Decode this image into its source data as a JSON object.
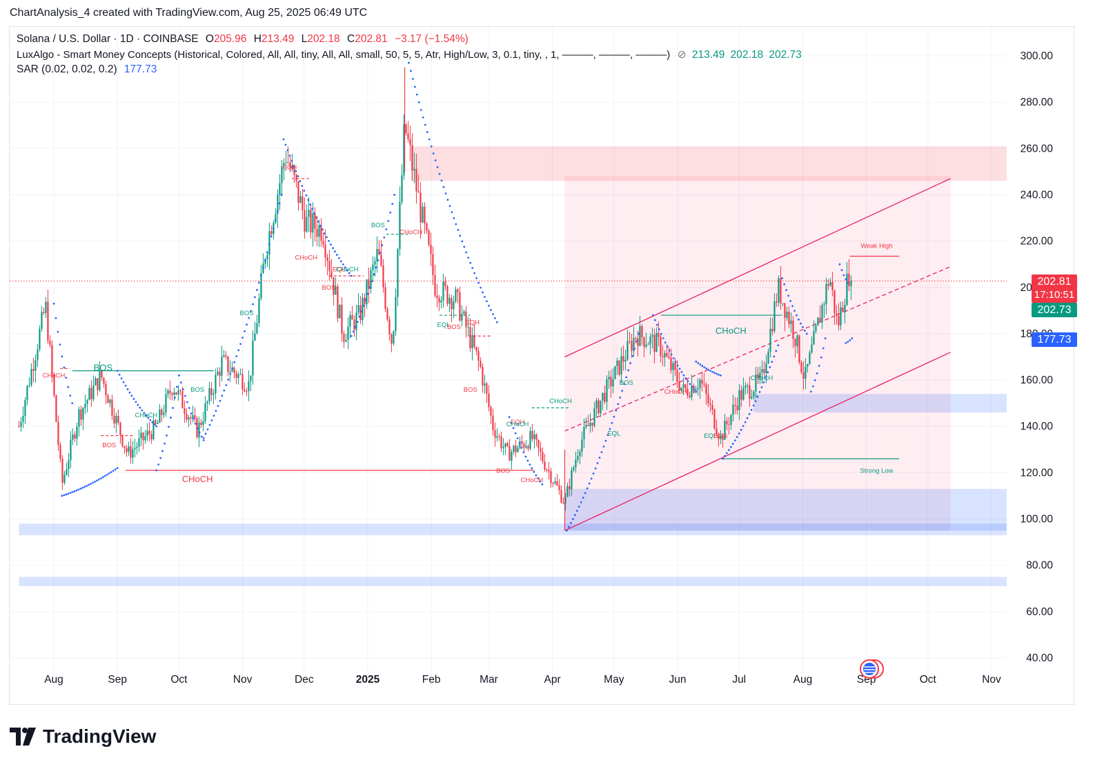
{
  "header": {
    "text": "ChartAnalysis_4 created with TradingView.com, Aug 25, 2025 06:49 UTC"
  },
  "legend": {
    "symbol": "Solana / U.S. Dollar · 1D · COINBASE",
    "o_label": "O",
    "o_val": "205.96",
    "h_label": "H",
    "h_val": "213.49",
    "l_label": "L",
    "l_val": "202.18",
    "c_label": "C",
    "c_val": "202.81",
    "change": "−3.17 (−1.54%)",
    "smc_label": "LuxAlgo - Smart Money Concepts (Historical, Colored, All, All, tiny, All, All, small, 50, 5, 5, Atr, High/Low, 3, 0.1, tiny, , 1, ———, ———, ———)",
    "smc_icon": "hidden-eye-icon",
    "smc_values": [
      "213.49",
      "202.18",
      "202.73"
    ],
    "sar_label": "SAR (0.02, 0.02, 0.2)",
    "sar_value": "177.73"
  },
  "price_tags": {
    "last_price": "202.81",
    "countdown": "17:10:51",
    "smc_value": "202.73",
    "sar_value": "177.73"
  },
  "colors": {
    "up": "#089981",
    "down": "#f23645",
    "sar": "#2962ff",
    "accent": "#e91e63"
  },
  "footer": {
    "logo": "TradingView",
    "logo_icon": "tradingview-logo-icon"
  },
  "chart_data": {
    "type": "candlestick",
    "title": "Solana / U.S. Dollar · 1D · COINBASE",
    "ylim": [
      40,
      300
    ],
    "y_ticks": [
      "300.00",
      "280.00",
      "260.00",
      "240.00",
      "220.00",
      "200.00",
      "180.00",
      "160.00",
      "140.00",
      "120.00",
      "100.00",
      "80.00",
      "60.00",
      "40.00"
    ],
    "x_ticks": [
      "Aug",
      "Sep",
      "Oct",
      "Nov",
      "Dec",
      "2025",
      "Feb",
      "Mar",
      "Apr",
      "May",
      "Jun",
      "Jul",
      "Aug",
      "Sep",
      "Oct",
      "Nov"
    ],
    "price_path": [
      [
        "2024-07-15",
        140
      ],
      [
        "2024-07-28",
        192
      ],
      [
        "2024-08-05",
        115
      ],
      [
        "2024-08-13",
        145
      ],
      [
        "2024-08-24",
        162
      ],
      [
        "2024-09-06",
        128
      ],
      [
        "2024-09-20",
        140
      ],
      [
        "2024-09-28",
        158
      ],
      [
        "2024-10-10",
        138
      ],
      [
        "2024-10-22",
        168
      ],
      [
        "2024-11-04",
        158
      ],
      [
        "2024-11-12",
        215
      ],
      [
        "2024-11-22",
        258
      ],
      [
        "2024-12-02",
        228
      ],
      [
        "2024-12-10",
        225
      ],
      [
        "2024-12-20",
        180
      ],
      [
        "2024-12-28",
        188
      ],
      [
        "2025-01-06",
        215
      ],
      [
        "2025-01-13",
        175
      ],
      [
        "2025-01-19",
        270
      ],
      [
        "2025-01-27",
        232
      ],
      [
        "2025-02-03",
        200
      ],
      [
        "2025-02-13",
        195
      ],
      [
        "2025-02-25",
        165
      ],
      [
        "2025-03-03",
        140
      ],
      [
        "2025-03-10",
        128
      ],
      [
        "2025-03-22",
        135
      ],
      [
        "2025-04-07",
        107
      ],
      [
        "2025-04-14",
        132
      ],
      [
        "2025-04-25",
        152
      ],
      [
        "2025-05-12",
        180
      ],
      [
        "2025-05-23",
        175
      ],
      [
        "2025-06-04",
        155
      ],
      [
        "2025-06-12",
        160
      ],
      [
        "2025-06-22",
        135
      ],
      [
        "2025-07-01",
        153
      ],
      [
        "2025-07-12",
        160
      ],
      [
        "2025-07-20",
        200
      ],
      [
        "2025-07-28",
        180
      ],
      [
        "2025-08-02",
        160
      ],
      [
        "2025-08-14",
        205
      ],
      [
        "2025-08-18",
        183
      ],
      [
        "2025-08-24",
        208
      ],
      [
        "2025-08-25",
        202.81
      ]
    ],
    "extremes": {
      "high": [
        "2025-01-19",
        295
      ],
      "low": [
        "2025-04-07",
        95
      ]
    },
    "sar_segments": [
      {
        "from": [
          "2024-08-01",
          193
        ],
        "to": [
          "2024-08-10",
          150
        ],
        "side": "above"
      },
      {
        "from": [
          "2024-08-05",
          110
        ],
        "to": [
          "2024-09-01",
          122
        ],
        "side": "below"
      },
      {
        "from": [
          "2024-09-01",
          164
        ],
        "to": [
          "2024-09-20",
          140
        ],
        "side": "above"
      },
      {
        "from": [
          "2024-09-20",
          121
        ],
        "to": [
          "2024-10-01",
          162
        ],
        "side": "below"
      },
      {
        "from": [
          "2024-10-01",
          162
        ],
        "to": [
          "2024-10-13",
          134
        ],
        "side": "above"
      },
      {
        "from": [
          "2024-10-13",
          135
        ],
        "to": [
          "2024-11-20",
          240
        ],
        "side": "below"
      },
      {
        "from": [
          "2024-11-21",
          264
        ],
        "to": [
          "2024-12-24",
          205
        ],
        "side": "above"
      },
      {
        "from": [
          "2024-12-24",
          179
        ],
        "to": [
          "2025-01-14",
          240
        ],
        "side": "below"
      },
      {
        "from": [
          "2025-01-21",
          297
        ],
        "to": [
          "2025-03-05",
          185
        ],
        "side": "above"
      },
      {
        "from": [
          "2025-03-11",
          144
        ],
        "to": [
          "2025-03-27",
          115
        ],
        "side": "above"
      },
      {
        "from": [
          "2025-04-08",
          95
        ],
        "to": [
          "2025-05-13",
          180
        ],
        "side": "below"
      },
      {
        "from": [
          "2025-05-20",
          188
        ],
        "to": [
          "2025-06-10",
          155
        ],
        "side": "above"
      },
      {
        "from": [
          "2025-06-10",
          168
        ],
        "to": [
          "2025-06-22",
          162
        ],
        "side": "above"
      },
      {
        "from": [
          "2025-06-23",
          126
        ],
        "to": [
          "2025-07-20",
          175
        ],
        "side": "below"
      },
      {
        "from": [
          "2025-07-22",
          204
        ],
        "to": [
          "2025-08-03",
          180
        ],
        "side": "above"
      },
      {
        "from": [
          "2025-08-05",
          155
        ],
        "to": [
          "2025-08-12",
          178
        ],
        "side": "below"
      },
      {
        "from": [
          "2025-08-19",
          210
        ],
        "to": [
          "2025-08-23",
          202
        ],
        "side": "above"
      },
      {
        "from": [
          "2025-08-22",
          176
        ],
        "to": [
          "2025-08-25",
          178
        ],
        "side": "below"
      }
    ],
    "channel": {
      "upper": [
        [
          "2025-04-07",
          170
        ],
        [
          "2025-10-12",
          247
        ]
      ],
      "middle": [
        [
          "2025-04-07",
          138
        ],
        [
          "2025-10-12",
          209
        ]
      ],
      "lower": [
        [
          "2025-04-07",
          95
        ],
        [
          "2025-10-12",
          172
        ]
      ]
    },
    "zones": [
      {
        "type": "supply",
        "from": "2025-01-22",
        "y1": 246,
        "y2": 261
      },
      {
        "type": "premium",
        "from": "2025-04-07",
        "to": "2025-10-12",
        "y1": 95,
        "y2": 248
      },
      {
        "type": "demand",
        "from": "2025-07-08",
        "y1": 146,
        "y2": 154
      },
      {
        "type": "demand",
        "from": "2025-04-07",
        "y1": 95,
        "y2": 113
      },
      {
        "type": "demand",
        "from": "2024-07-15",
        "y1": 93,
        "y2": 98
      },
      {
        "type": "demand",
        "from": "2024-07-15",
        "y1": 71,
        "y2": 75
      }
    ],
    "structure_labels": [
      {
        "text": "BOS",
        "date": "2024-08-25",
        "value": 164,
        "color": "green",
        "size": "large"
      },
      {
        "text": "CHoCH",
        "date": "2024-08-01",
        "value": 161,
        "color": "red",
        "size": "small"
      },
      {
        "text": "BOS",
        "date": "2024-08-28",
        "value": 131,
        "color": "red",
        "size": "small"
      },
      {
        "text": "CHoCH",
        "date": "2024-09-15",
        "value": 144,
        "color": "green",
        "size": "small"
      },
      {
        "text": "BOS",
        "date": "2024-10-10",
        "value": 155,
        "color": "green",
        "size": "small"
      },
      {
        "text": "CHoCH",
        "date": "2024-10-10",
        "value": 116,
        "color": "red",
        "size": "large"
      },
      {
        "text": "BOS",
        "date": "2024-11-03",
        "value": 188,
        "color": "green",
        "size": "small"
      },
      {
        "text": "EQH",
        "date": "2024-11-24",
        "value": 251,
        "color": "red",
        "size": "small"
      },
      {
        "text": "CHoCH",
        "date": "2024-12-02",
        "value": 212,
        "color": "red",
        "size": "small"
      },
      {
        "text": "BOS",
        "date": "2024-12-13",
        "value": 199,
        "color": "red",
        "size": "small"
      },
      {
        "text": "EQL",
        "date": "2024-12-18",
        "value": 207,
        "color": "red",
        "size": "small"
      },
      {
        "text": "CHoCH",
        "date": "2024-12-22",
        "value": 207,
        "color": "green",
        "size": "small"
      },
      {
        "text": "BOS",
        "date": "2025-01-06",
        "value": 226,
        "color": "green",
        "size": "small"
      },
      {
        "text": "CHoCH",
        "date": "2025-01-22",
        "value": 223,
        "color": "red",
        "size": "small"
      },
      {
        "text": "EQL",
        "date": "2025-02-07",
        "value": 183,
        "color": "green",
        "size": "small"
      },
      {
        "text": "BOS",
        "date": "2025-02-12",
        "value": 182,
        "color": "red",
        "size": "small"
      },
      {
        "text": "EQH",
        "date": "2025-02-21",
        "value": 184,
        "color": "red",
        "size": "small"
      },
      {
        "text": "BOS",
        "date": "2025-02-20",
        "value": 155,
        "color": "red",
        "size": "small"
      },
      {
        "text": "EQH",
        "date": "2025-03-15",
        "value": 141,
        "color": "red",
        "size": "small"
      },
      {
        "text": "CHoCH",
        "date": "2025-03-15",
        "value": 140,
        "color": "green",
        "size": "small"
      },
      {
        "text": "BOS",
        "date": "2025-03-08",
        "value": 120,
        "color": "red",
        "size": "small"
      },
      {
        "text": "CHoCH",
        "date": "2025-03-22",
        "value": 116,
        "color": "red",
        "size": "small"
      },
      {
        "text": "CHoCH",
        "date": "2025-04-05",
        "value": 150,
        "color": "green",
        "size": "small"
      },
      {
        "text": "BOS",
        "date": "2025-05-07",
        "value": 158,
        "color": "green",
        "size": "small"
      },
      {
        "text": "EQL",
        "date": "2025-05-01",
        "value": 136,
        "color": "green",
        "size": "small"
      },
      {
        "text": "CHoCH",
        "date": "2025-05-31",
        "value": 154,
        "color": "red",
        "size": "small"
      },
      {
        "text": "CHoCH",
        "date": "2025-06-27",
        "value": 180,
        "color": "green",
        "size": "large"
      },
      {
        "text": "EQL",
        "date": "2025-06-17",
        "value": 135,
        "color": "green",
        "size": "small"
      },
      {
        "text": "BOS",
        "date": "2025-06-22",
        "value": 135,
        "color": "red",
        "size": "small"
      },
      {
        "text": "CHoCH",
        "date": "2025-07-12",
        "value": 160,
        "color": "green",
        "size": "small"
      },
      {
        "text": "Weak High",
        "date": "2025-09-06",
        "value": 217,
        "color": "red",
        "size": "tiny"
      },
      {
        "text": "Strong Low",
        "date": "2025-09-06",
        "value": 120,
        "color": "green",
        "size": "tiny"
      }
    ],
    "structure_lines": [
      {
        "from": [
          "2024-08-10",
          164
        ],
        "to": [
          "2024-10-18",
          164
        ],
        "color": "green"
      },
      {
        "from": [
          "2024-09-05",
          121
        ],
        "to": [
          "2025-03-23",
          121
        ],
        "color": "red"
      },
      {
        "from": [
          "2024-08-04",
          165
        ],
        "to": [
          "2024-08-09",
          165
        ],
        "color": "red",
        "dash": true
      },
      {
        "from": [
          "2024-08-24",
          136
        ],
        "to": [
          "2024-09-09",
          136
        ],
        "color": "red",
        "dash": true
      },
      {
        "from": [
          "2024-11-25",
          247
        ],
        "to": [
          "2024-12-04",
          247
        ],
        "color": "red",
        "dash": true
      },
      {
        "from": [
          "2024-12-13",
          205
        ],
        "to": [
          "2024-12-30",
          205
        ],
        "color": "red",
        "dash": true
      },
      {
        "from": [
          "2025-01-10",
          223
        ],
        "to": [
          "2025-01-22",
          223
        ],
        "color": "green",
        "dash": true
      },
      {
        "from": [
          "2025-02-05",
          188
        ],
        "to": [
          "2025-02-20",
          188
        ],
        "color": "green",
        "dash": true
      },
      {
        "from": [
          "2025-02-19",
          179
        ],
        "to": [
          "2025-03-02",
          179
        ],
        "color": "red",
        "dash": true
      },
      {
        "from": [
          "2025-03-22",
          148
        ],
        "to": [
          "2025-04-09",
          148
        ],
        "color": "green",
        "dash": true
      },
      {
        "from": [
          "2025-05-24",
          188
        ],
        "to": [
          "2025-07-22",
          188
        ],
        "color": "green"
      },
      {
        "from": [
          "2025-06-23",
          126
        ],
        "to": [
          "2025-09-17",
          126
        ],
        "color": "green"
      },
      {
        "from": [
          "2025-08-24",
          213.49
        ],
        "to": [
          "2025-09-17",
          213.49
        ],
        "color": "red"
      }
    ],
    "last_price": 202.81,
    "sar": 177.73,
    "smc": 202.73
  }
}
